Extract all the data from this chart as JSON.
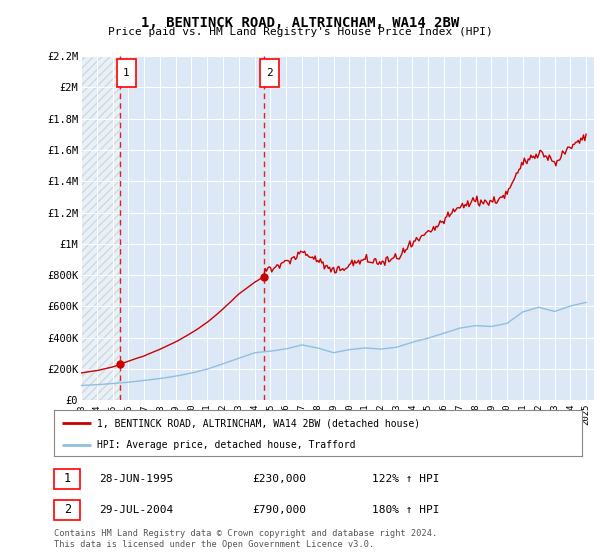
{
  "title": "1, BENTINCK ROAD, ALTRINCHAM, WA14 2BW",
  "subtitle": "Price paid vs. HM Land Registry's House Price Index (HPI)",
  "hpi_label": "HPI: Average price, detached house, Trafford",
  "property_label": "1, BENTINCK ROAD, ALTRINCHAM, WA14 2BW (detached house)",
  "sale1_date": "28-JUN-1995",
  "sale1_price": 230000,
  "sale1_hpi": "122% ↑ HPI",
  "sale2_date": "29-JUL-2004",
  "sale2_price": 790000,
  "sale2_hpi": "180% ↑ HPI",
  "footer": "Contains HM Land Registry data © Crown copyright and database right 2024.\nThis data is licensed under the Open Government Licence v3.0.",
  "background_color": "#ffffff",
  "plot_bg_color": "#dce8f5",
  "grid_color": "#ffffff",
  "hpi_color": "#90bfe0",
  "property_color": "#cc0000",
  "dashed_line_color": "#dd2222",
  "sale_marker_color": "#cc0000",
  "ylim_min": 0,
  "ylim_max": 2200000,
  "yticks": [
    0,
    200000,
    400000,
    600000,
    800000,
    1000000,
    1200000,
    1400000,
    1600000,
    1800000,
    2000000,
    2200000
  ],
  "ytick_labels": [
    "£0",
    "£200K",
    "£400K",
    "£600K",
    "£800K",
    "£1M",
    "£1.2M",
    "£1.4M",
    "£1.6M",
    "£1.8M",
    "£2M",
    "£2.2M"
  ],
  "sale1_year": 1995.5,
  "sale2_year": 2004.58,
  "xlim_min": 1993.0,
  "xlim_max": 2025.5,
  "xtick_years": [
    1993,
    1994,
    1995,
    1996,
    1997,
    1998,
    1999,
    2000,
    2001,
    2002,
    2003,
    2004,
    2005,
    2006,
    2007,
    2008,
    2009,
    2010,
    2011,
    2012,
    2013,
    2014,
    2015,
    2016,
    2017,
    2018,
    2019,
    2020,
    2021,
    2022,
    2023,
    2024,
    2025
  ]
}
